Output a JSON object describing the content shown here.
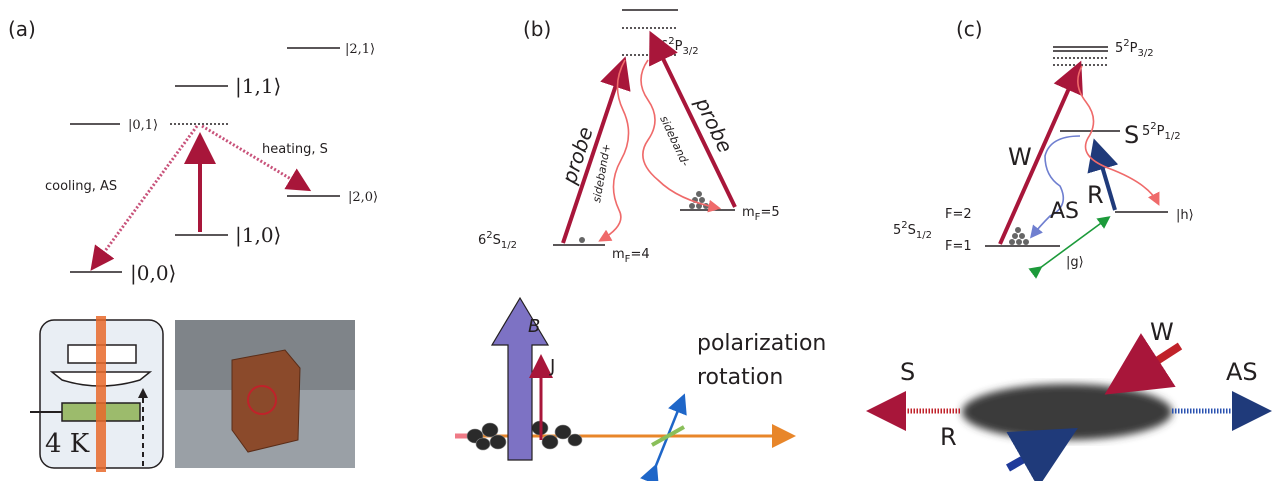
{
  "panels": {
    "a": {
      "label": "(a)",
      "states": [
        "|2,1⟩",
        "|1,1⟩",
        "|0,1⟩",
        "|2,0⟩",
        "|1,0⟩",
        "|0,0⟩"
      ],
      "cooling": "cooling, AS",
      "heating": "heating, S",
      "temperature": "4 K"
    },
    "b": {
      "label": "(b)",
      "excited": {
        "n": "6",
        "sup": "2",
        "l": "P",
        "sub": "3/2"
      },
      "ground": {
        "n": "6",
        "sup": "2",
        "l": "S",
        "sub": "1/2"
      },
      "probe_left": "probe",
      "probe_right": "probe",
      "sideband_plus": "sideband+",
      "sideband_minus": "sideband-",
      "mf4": {
        "m": "m",
        "sub": "F",
        "rest": "=4"
      },
      "mf5": {
        "m": "m",
        "sub": "F",
        "rest": "=5"
      },
      "field": "B",
      "spin": "J",
      "polarization": [
        "polarization",
        "rotation"
      ]
    },
    "c": {
      "label": "(c)",
      "p32": {
        "n": "5",
        "sup": "2",
        "l": "P",
        "sub": "3/2"
      },
      "p12": {
        "n": "5",
        "sup": "2",
        "l": "P",
        "sub": "1/2"
      },
      "s12": {
        "n": "5",
        "sup": "2",
        "l": "S",
        "sub": "1/2"
      },
      "f2": "F=2",
      "f1": "F=1",
      "write": "W",
      "stokes": "S",
      "read": "R",
      "antistokes": "AS",
      "h": "|h⟩",
      "g": "|g⟩",
      "bottom": {
        "write": "W",
        "stokes": "S",
        "antistokes": "AS",
        "read": "R"
      }
    }
  }
}
